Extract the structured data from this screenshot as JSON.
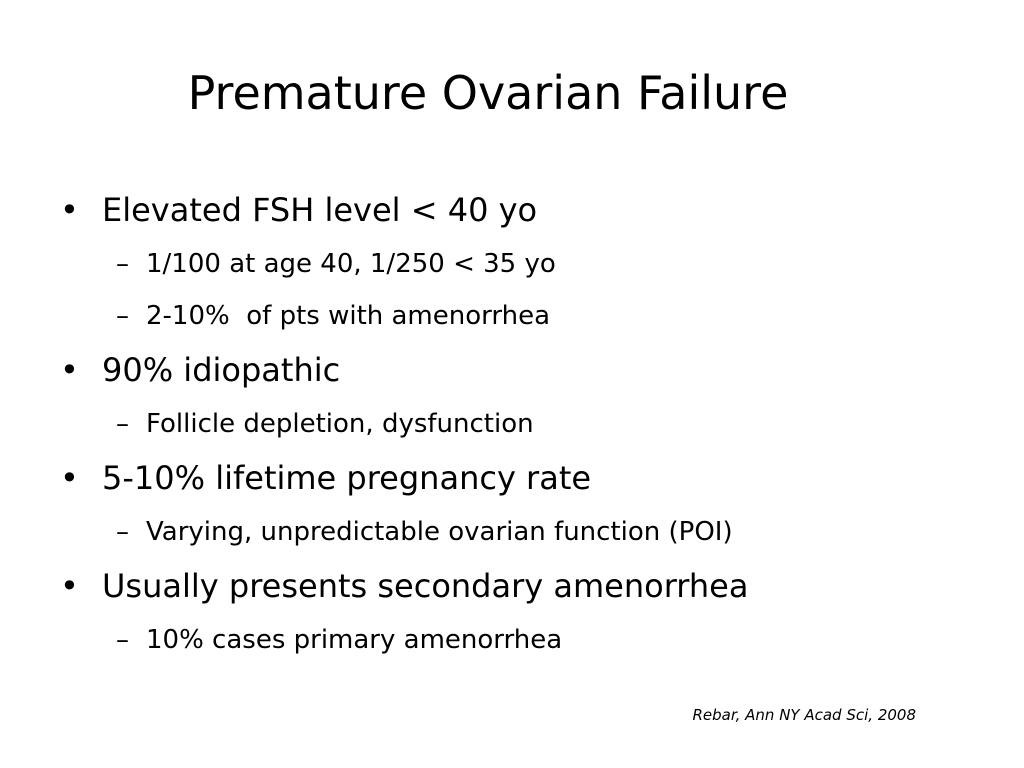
{
  "slide": {
    "title": "Premature Ovarian Failure",
    "bullets": [
      {
        "text": "Elevated FSH level < 40 yo",
        "sub": [
          "1/100 at age 40, 1/250 < 35 yo",
          "2-10%  of pts with amenorrhea"
        ]
      },
      {
        "text": "90% idiopathic",
        "sub": [
          "Follicle depletion, dysfunction"
        ]
      },
      {
        "text": "5-10% lifetime pregnancy rate",
        "sub": [
          "Varying, unpredictable ovarian function (POI)"
        ]
      },
      {
        "text": "Usually presents secondary amenorrhea",
        "sub": [
          "10% cases primary amenorrhea"
        ]
      }
    ],
    "citation": "Rebar, Ann NY Acad Sci, 2008"
  }
}
